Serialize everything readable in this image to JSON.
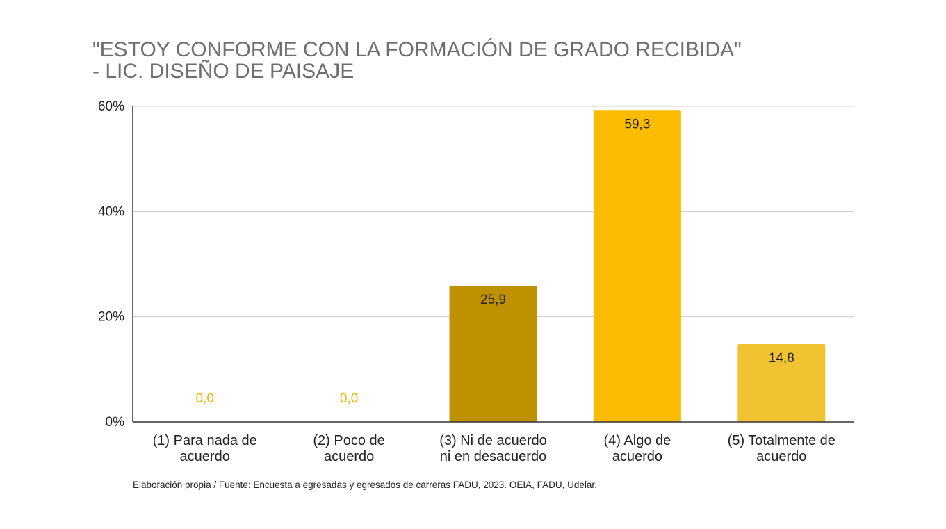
{
  "chart_data": {
    "type": "bar",
    "title_lines": [
      "\"ESTOY CONFORME CON LA FORMACIÓN DE GRADO RECIBIDA\"",
      "- LIC. DISEÑO DE PAISAJE"
    ],
    "categories": [
      [
        "(1) Para nada de",
        "acuerdo"
      ],
      [
        "(2) Poco de",
        "acuerdo"
      ],
      [
        "(3) Ni de acuerdo",
        "ni en desacuerdo"
      ],
      [
        "(4) Algo de",
        "acuerdo"
      ],
      [
        "(5) Totalmente de",
        "acuerdo"
      ]
    ],
    "values": [
      0.0,
      0.0,
      25.9,
      59.3,
      14.8
    ],
    "value_labels": [
      "0,0",
      "0,0",
      "25,9",
      "59,3",
      "14,8"
    ],
    "bar_colors": [
      "#f4b400",
      "#f4b400",
      "#bf9000",
      "#f9bc00",
      "#f1c232"
    ],
    "zero_label_color": "#f4b400",
    "ylim": [
      0,
      60
    ],
    "y_ticks": [
      0,
      20,
      40,
      60
    ],
    "y_tick_labels": [
      "0%",
      "20%",
      "40%",
      "60%"
    ],
    "grid": true,
    "legend": "none"
  },
  "footnote": "Elaboración propia / Fuente: Encuesta a egresadas y egresados de carreras FADU, 2023. OEIA, FADU, Udelar."
}
